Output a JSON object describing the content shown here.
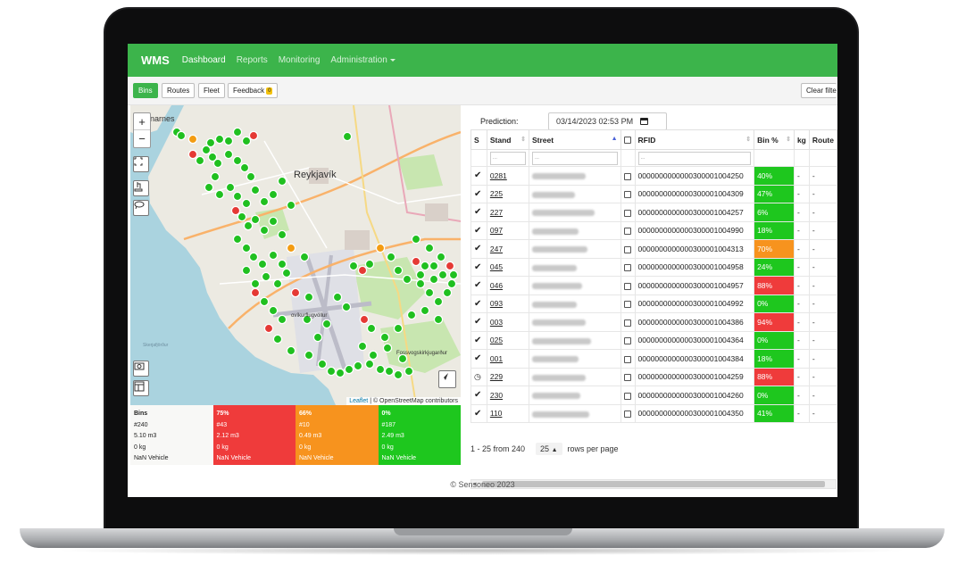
{
  "nav": {
    "brand": "WMS",
    "items": [
      {
        "label": "Dashboard",
        "active": true
      },
      {
        "label": "Reports"
      },
      {
        "label": "Monitoring"
      },
      {
        "label": "Administration",
        "dropdown": true
      }
    ]
  },
  "toolbar": {
    "bins": "Bins",
    "routes": "Routes",
    "fleet": "Fleet",
    "feedback": "Feedback",
    "feedback_count": "0",
    "clear_filters": "Clear filte"
  },
  "map": {
    "zoom_in": "+",
    "zoom_out": "−",
    "labels": {
      "city": "Reykjavík",
      "area": "narnes",
      "airport": "ovíkurflugvöllur",
      "road": "Fossvogskirkjugarður",
      "sea": "Skerjafjörður"
    },
    "attribution_leaflet": "Leaflet",
    "attribution_rest": " | © OpenStreetMap contributors"
  },
  "summary": [
    {
      "title": "Bins",
      "count": "#240",
      "volume": "5.10 m3",
      "weight": "0 kg",
      "vehicle": "NaN Vehicle",
      "color": "neutral"
    },
    {
      "title": "75%",
      "count": "#43",
      "volume": "2.12 m3",
      "weight": "0 kg",
      "vehicle": "NaN Vehicle",
      "color": "red"
    },
    {
      "title": "66%",
      "count": "#10",
      "volume": "0.49 m3",
      "weight": "0 kg",
      "vehicle": "NaN Vehicle",
      "color": "orange"
    },
    {
      "title": "0%",
      "count": "#187",
      "volume": "2.49 m3",
      "weight": "0 kg",
      "vehicle": "NaN Vehicle",
      "color": "green"
    }
  ],
  "prediction": {
    "label": "Prediction:",
    "value": "03/14/2023 02:53 PM"
  },
  "table": {
    "headers": {
      "s": "S",
      "stand": "Stand",
      "street": "Street",
      "rfid": "RFID",
      "bin_pct": "Bin %",
      "kg": "kg",
      "route": "Route"
    },
    "filter_placeholder": "...",
    "rows": [
      {
        "status": "check",
        "stand": "0281",
        "rfid": "0000000000000300001004250",
        "pct": "40%",
        "level": "green",
        "kg": "-",
        "route": "-"
      },
      {
        "status": "check",
        "stand": "225",
        "rfid": "0000000000000300001004309",
        "pct": "47%",
        "level": "green",
        "kg": "-",
        "route": "-"
      },
      {
        "status": "check",
        "stand": "227",
        "rfid": "0000000000000300001004257",
        "pct": "6%",
        "level": "green",
        "kg": "-",
        "route": "-"
      },
      {
        "status": "check",
        "stand": "097",
        "rfid": "0000000000000300001004990",
        "pct": "18%",
        "level": "green",
        "kg": "-",
        "route": "-"
      },
      {
        "status": "check",
        "stand": "247",
        "rfid": "0000000000000300001004313",
        "pct": "70%",
        "level": "orange",
        "kg": "-",
        "route": "-"
      },
      {
        "status": "check",
        "stand": "045",
        "rfid": "0000000000000300001004958",
        "pct": "24%",
        "level": "green",
        "kg": "-",
        "route": "-"
      },
      {
        "status": "check",
        "stand": "046",
        "rfid": "0000000000000300001004957",
        "pct": "88%",
        "level": "red",
        "kg": "-",
        "route": "-"
      },
      {
        "status": "check",
        "stand": "093",
        "rfid": "0000000000000300001004992",
        "pct": "0%",
        "level": "green",
        "kg": "-",
        "route": "-"
      },
      {
        "status": "check",
        "stand": "003",
        "rfid": "0000000000000300001004386",
        "pct": "94%",
        "level": "red",
        "kg": "-",
        "route": "-"
      },
      {
        "status": "check",
        "stand": "025",
        "rfid": "0000000000000300001004364",
        "pct": "0%",
        "level": "green",
        "kg": "-",
        "route": "-"
      },
      {
        "status": "check",
        "stand": "001",
        "rfid": "0000000000000300001004384",
        "pct": "18%",
        "level": "green",
        "kg": "-",
        "route": "-"
      },
      {
        "status": "clock",
        "stand": "229",
        "rfid": "0000000000000300001004259",
        "pct": "88%",
        "level": "red",
        "kg": "-",
        "route": "-"
      },
      {
        "status": "check",
        "stand": "230",
        "rfid": "0000000000000300001004260",
        "pct": "0%",
        "level": "green",
        "kg": "-",
        "route": "-"
      },
      {
        "status": "check",
        "stand": "110",
        "rfid": "0000000000000300001004350",
        "pct": "41%",
        "level": "green",
        "kg": "-",
        "route": "-"
      }
    ]
  },
  "pager": {
    "range": "1 - 25 from 240",
    "page_size": "25",
    "suffix": "rows per page"
  },
  "footer": "© Sensoneo 2023",
  "colors": {
    "accent": "#3cb44b",
    "green": "#1ec71e",
    "orange": "#f7931e",
    "red": "#ef3b3b"
  }
}
